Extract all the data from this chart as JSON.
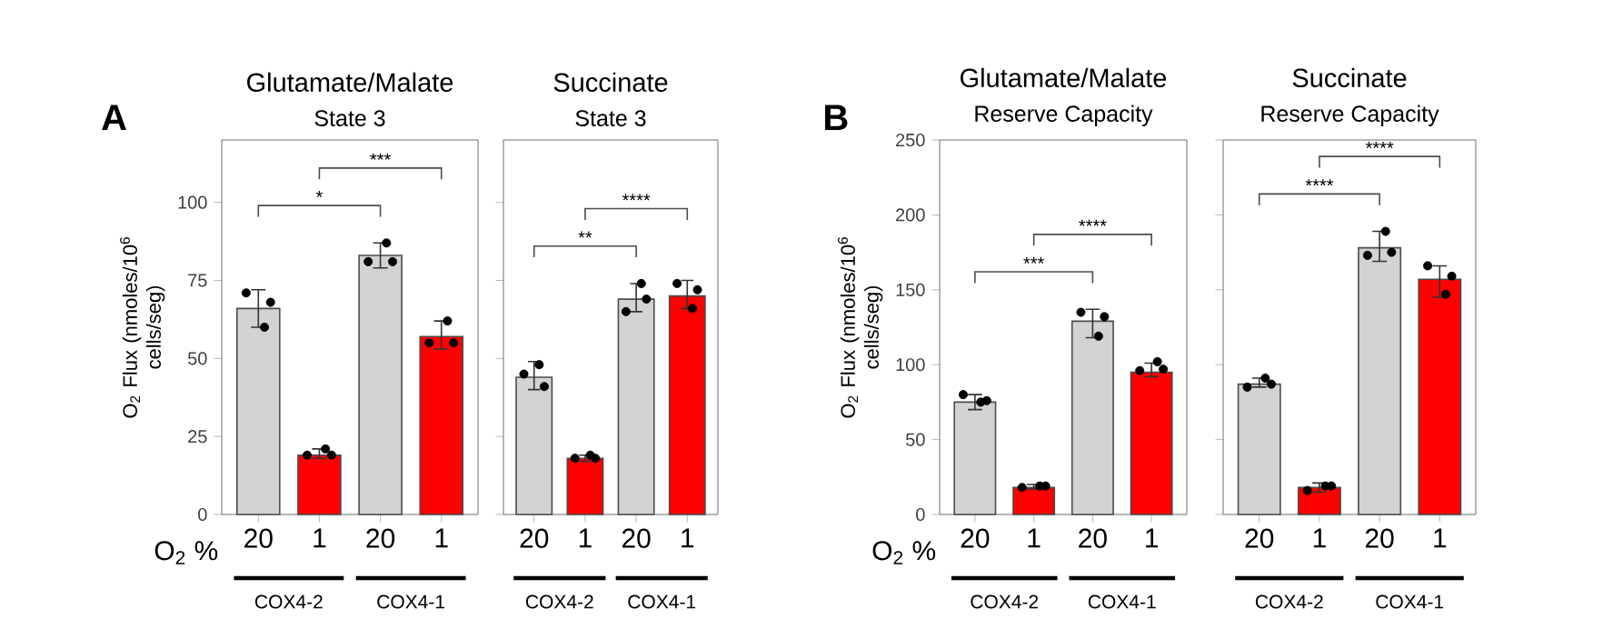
{
  "chart_data": [
    {
      "type": "bar",
      "title": "Glutamate/Malate",
      "subtitle": "State 3",
      "ylabel": "O$_{2}$ Flux (nmoles/10$^{6}$ cells/seg)",
      "categories": [
        "20",
        "1",
        "20",
        "1"
      ],
      "ylim": [
        0,
        120
      ],
      "yticks": [
        0,
        25,
        50,
        75,
        100
      ],
      "series": [
        {
          "type": "bar",
          "colors": [
            "#d3d3d3",
            "#ff0000",
            "#d3d3d3",
            "#ff0000"
          ],
          "values": [
            66,
            19,
            83,
            57
          ],
          "errors": [
            [
              60,
              72
            ],
            [
              18,
              21
            ],
            [
              79,
              87
            ],
            [
              53,
              62
            ]
          ]
        },
        {
          "type": "scatter",
          "color": "#000000",
          "marker": "circle",
          "values": [
            71,
            19,
            81,
            55
          ]
        },
        {
          "type": "scatter",
          "color": "#000000",
          "marker": "circle",
          "values": [
            60,
            21,
            87,
            62
          ]
        },
        {
          "type": "scatter",
          "color": "#000000",
          "marker": "circle",
          "values": [
            68,
            19,
            81,
            55
          ]
        }
      ],
      "annotations": [
        "A",
        "*",
        "***",
        "O$_{2}$ %",
        "COX4-2",
        "COX4-1"
      ]
    },
    {
      "type": "bar",
      "title": "Succinate",
      "subtitle": "State 3",
      "categories": [
        "20",
        "1",
        "20",
        "1"
      ],
      "ylim": [
        0,
        120
      ],
      "yticks": [
        0,
        25,
        50,
        75,
        100
      ],
      "tick_labels": "x",
      "series": [
        {
          "type": "bar",
          "colors": [
            "#d3d3d3",
            "#ff0000",
            "#d3d3d3",
            "#ff0000"
          ],
          "values": [
            44,
            18,
            69,
            70
          ],
          "errors": [
            [
              40,
              49
            ],
            [
              17,
              19
            ],
            [
              65,
              74
            ],
            [
              66,
              75
            ]
          ]
        },
        {
          "type": "scatter",
          "color": "#000000",
          "marker": "circle",
          "values": [
            45,
            18,
            65,
            74
          ]
        },
        {
          "type": "scatter",
          "color": "#000000",
          "marker": "circle",
          "values": [
            48,
            19,
            74,
            66
          ]
        },
        {
          "type": "scatter",
          "color": "#000000",
          "marker": "circle",
          "values": [
            41,
            18,
            69,
            72
          ]
        }
      ],
      "annotations": [
        "**",
        "****",
        "COX4-2",
        "COX4-1"
      ]
    },
    {
      "type": "bar",
      "title": "Glutamate/Malate",
      "subtitle": "Reserve Capacity",
      "ylabel": "O$_{2}$ Flux (nmoles/10$^{6}$ cells/seg)",
      "categories": [
        "20",
        "1",
        "20",
        "1"
      ],
      "ylim": [
        0,
        250
      ],
      "yticks": [
        0,
        50,
        100,
        150,
        200,
        250
      ],
      "series": [
        {
          "type": "bar",
          "colors": [
            "#d3d3d3",
            "#ff0000",
            "#d3d3d3",
            "#ff0000"
          ],
          "values": [
            75,
            18,
            129,
            95
          ],
          "errors": [
            [
              70,
              80
            ],
            [
              17,
              20
            ],
            [
              118,
              137
            ],
            [
              92,
              101
            ]
          ]
        },
        {
          "type": "scatter",
          "color": "#000000",
          "marker": "circle",
          "values": [
            80,
            18,
            135,
            96
          ]
        },
        {
          "type": "scatter",
          "color": "#000000",
          "marker": "circle",
          "values": [
            75,
            19,
            119,
            102
          ]
        },
        {
          "type": "scatter",
          "color": "#000000",
          "marker": "circle",
          "values": [
            76,
            19,
            132,
            97
          ]
        }
      ],
      "annotations": [
        "B",
        "***",
        "****",
        "O$_{2}$ %",
        "COX4-2",
        "COX4-1"
      ]
    },
    {
      "type": "bar",
      "title": "Succinate",
      "subtitle": "Reserve Capacity",
      "categories": [
        "20",
        "1",
        "20",
        "1"
      ],
      "ylim": [
        0,
        250
      ],
      "yticks": [
        0,
        50,
        100,
        150,
        200,
        250
      ],
      "tick_labels": "x",
      "series": [
        {
          "type": "bar",
          "colors": [
            "#d3d3d3",
            "#ff0000",
            "#d3d3d3",
            "#ff0000"
          ],
          "values": [
            87,
            18,
            178,
            157
          ],
          "errors": [
            [
              85,
              91
            ],
            [
              15,
              21
            ],
            [
              169,
              189
            ],
            [
              145,
              166
            ]
          ]
        },
        {
          "type": "scatter",
          "color": "#000000",
          "marker": "circle",
          "values": [
            85,
            16,
            173,
            166
          ]
        },
        {
          "type": "scatter",
          "color": "#000000",
          "marker": "circle",
          "values": [
            91,
            19,
            189,
            147
          ]
        },
        {
          "type": "scatter",
          "color": "#000000",
          "marker": "circle",
          "values": [
            87,
            19,
            175,
            159
          ]
        }
      ],
      "annotations": [
        "****",
        "****",
        "COX4-2",
        "COX4-1"
      ]
    }
  ]
}
